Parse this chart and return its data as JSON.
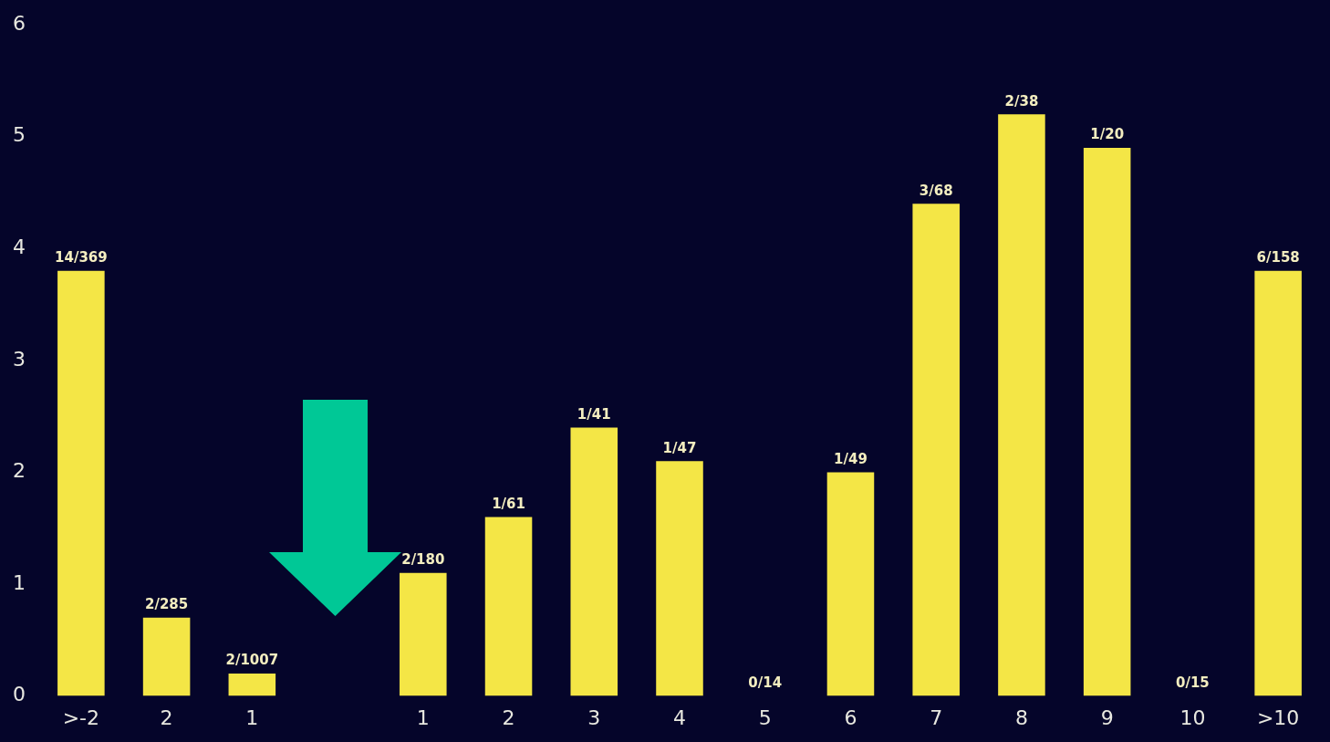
{
  "chart_data": {
    "type": "bar",
    "categories": [
      ">-2",
      "2",
      "1",
      null,
      "1",
      "2",
      "3",
      "4",
      "5",
      "6",
      "7",
      "8",
      "9",
      "10",
      ">10"
    ],
    "values": [
      3.8,
      0.7,
      0.2,
      null,
      1.1,
      1.6,
      2.4,
      2.1,
      0,
      2.0,
      4.4,
      5.2,
      4.9,
      0,
      3.8
    ],
    "value_labels": [
      "14/369",
      "2/285",
      "2/1007",
      null,
      "2/180",
      "1/61",
      "1/41",
      "1/47",
      "0/14",
      "1/49",
      "3/68",
      "2/38",
      "1/20",
      "0/15",
      "6/158"
    ],
    "color": "#f4e646",
    "ylim": [
      0,
      6
    ],
    "yticks": [
      0,
      1,
      2,
      3,
      4,
      5,
      6
    ],
    "grid": false,
    "legend": false
  }
}
